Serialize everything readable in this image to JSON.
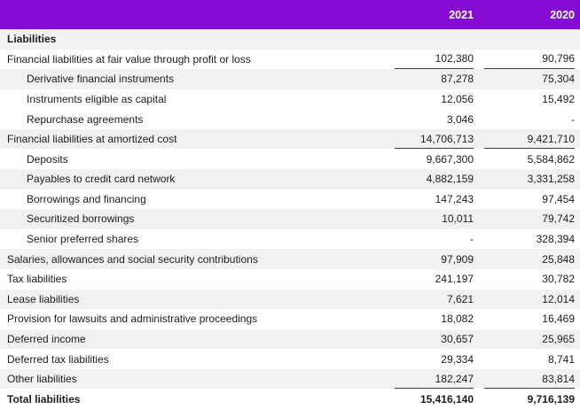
{
  "colors": {
    "header_bg": "#850bd3",
    "header_text": "#ffffff",
    "stripe_bg": "#f1f1f2",
    "text": "#1c1c1e",
    "underline": "#3c3c3c"
  },
  "header": {
    "col_2021": "2021",
    "col_2020": "2020"
  },
  "table": {
    "rows": [
      {
        "label": "Liabilities",
        "v2021": "",
        "v2020": ""
      },
      {
        "label": "Financial liabilities at fair value through profit or loss",
        "v2021": "102,380",
        "v2020": "90,796"
      },
      {
        "label": "Derivative financial instruments",
        "v2021": "87,278",
        "v2020": "75,304"
      },
      {
        "label": "Instruments eligible as capital",
        "v2021": "12,056",
        "v2020": "15,492"
      },
      {
        "label": "Repurchase agreements",
        "v2021": "3,046",
        "v2020": "-"
      },
      {
        "label": "Financial liabilities at amortized cost",
        "v2021": "14,706,713",
        "v2020": "9,421,710"
      },
      {
        "label": "Deposits",
        "v2021": "9,667,300",
        "v2020": "5,584,862"
      },
      {
        "label": "Payables to credit card network",
        "v2021": "4,882,159",
        "v2020": "3,331,258"
      },
      {
        "label": "Borrowings and financing",
        "v2021": "147,243",
        "v2020": "97,454"
      },
      {
        "label": "Securitized borrowings",
        "v2021": "10,011",
        "v2020": "79,742"
      },
      {
        "label": "Senior preferred shares",
        "v2021": "-",
        "v2020": "328,394"
      },
      {
        "label": "Salaries, allowances and social security contributions",
        "v2021": "97,909",
        "v2020": "25,848"
      },
      {
        "label": "Tax liabilities",
        "v2021": "241,197",
        "v2020": "30,782"
      },
      {
        "label": "Lease liabilities",
        "v2021": "7,621",
        "v2020": "12,014"
      },
      {
        "label": "Provision for lawsuits and administrative proceedings",
        "v2021": "18,082",
        "v2020": "16,469"
      },
      {
        "label": "Deferred income",
        "v2021": "30,657",
        "v2020": "25,965"
      },
      {
        "label": "Deferred tax liabilities",
        "v2021": "29,334",
        "v2020": "8,741"
      },
      {
        "label": "Other liabilities",
        "v2021": "182,247",
        "v2020": "83,814"
      },
      {
        "label": "Total liabilities",
        "v2021": "15,416,140",
        "v2020": "9,716,139"
      }
    ]
  }
}
